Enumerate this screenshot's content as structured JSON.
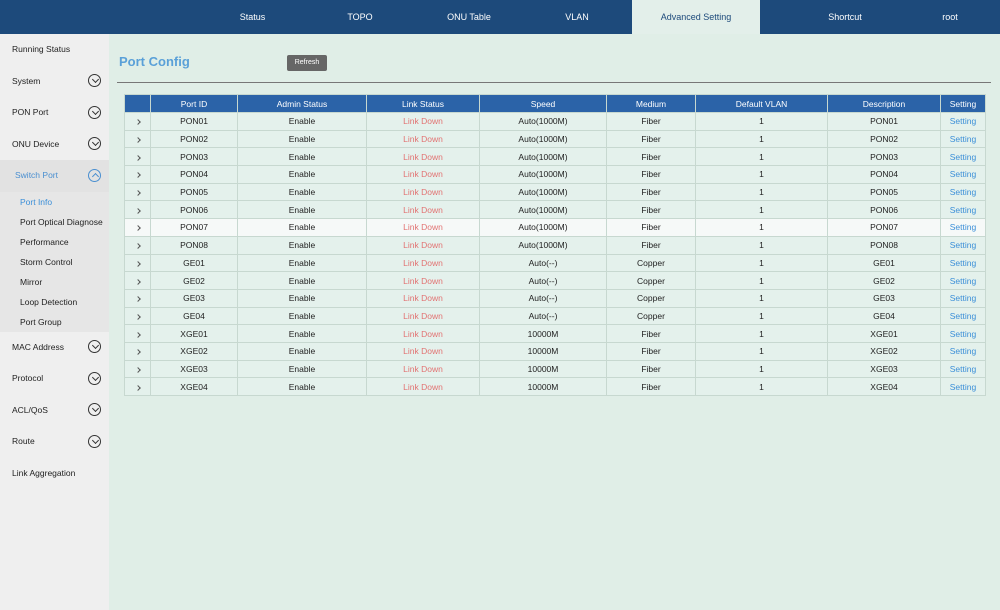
{
  "nav": {
    "items": [
      "Status",
      "TOPO",
      "ONU Table",
      "VLAN",
      "Advanced Setting",
      "Shortcut",
      "root"
    ],
    "active": 4
  },
  "menu": [
    {
      "label": "Running Status",
      "collapsible": false
    },
    {
      "label": "System",
      "collapsible": true
    },
    {
      "label": "PON Port",
      "collapsible": true
    },
    {
      "label": "ONU Device",
      "collapsible": true
    },
    {
      "label": "Switch Port",
      "collapsible": true,
      "expanded": true,
      "selected_child": 0,
      "children": [
        "Port Info",
        "Port Optical Diagnose",
        "Performance",
        "Storm Control",
        "Mirror",
        "Loop Detection",
        "Port Group"
      ]
    },
    {
      "label": "MAC Address",
      "collapsible": true
    },
    {
      "label": "Protocol",
      "collapsible": true
    },
    {
      "label": "ACL/QoS",
      "collapsible": true
    },
    {
      "label": "Route",
      "collapsible": true
    },
    {
      "label": "Link Aggregation",
      "collapsible": false
    }
  ],
  "page": {
    "title": "Port Config",
    "refresh_button": "Refresh"
  },
  "table": {
    "columns": [
      "Port ID",
      "Admin Status",
      "Link Status",
      "Speed",
      "Medium",
      "Default VLAN",
      "Description",
      "Setting"
    ],
    "highlighted_row": 6,
    "rows": [
      [
        "PON01",
        "Enable",
        "Link Down",
        "Auto(1000M)",
        "Fiber",
        1,
        "PON01",
        "Setting"
      ],
      [
        "PON02",
        "Enable",
        "Link Down",
        "Auto(1000M)",
        "Fiber",
        1,
        "PON02",
        "Setting"
      ],
      [
        "PON03",
        "Enable",
        "Link Down",
        "Auto(1000M)",
        "Fiber",
        1,
        "PON03",
        "Setting"
      ],
      [
        "PON04",
        "Enable",
        "Link Down",
        "Auto(1000M)",
        "Fiber",
        1,
        "PON04",
        "Setting"
      ],
      [
        "PON05",
        "Enable",
        "Link Down",
        "Auto(1000M)",
        "Fiber",
        1,
        "PON05",
        "Setting"
      ],
      [
        "PON06",
        "Enable",
        "Link Down",
        "Auto(1000M)",
        "Fiber",
        1,
        "PON06",
        "Setting"
      ],
      [
        "PON07",
        "Enable",
        "Link Down",
        "Auto(1000M)",
        "Fiber",
        1,
        "PON07",
        "Setting"
      ],
      [
        "PON08",
        "Enable",
        "Link Down",
        "Auto(1000M)",
        "Fiber",
        1,
        "PON08",
        "Setting"
      ],
      [
        "GE01",
        "Enable",
        "Link Down",
        "Auto(--)",
        "Copper",
        1,
        "GE01",
        "Setting"
      ],
      [
        "GE02",
        "Enable",
        "Link Down",
        "Auto(--)",
        "Copper",
        1,
        "GE02",
        "Setting"
      ],
      [
        "GE03",
        "Enable",
        "Link Down",
        "Auto(--)",
        "Copper",
        1,
        "GE03",
        "Setting"
      ],
      [
        "GE04",
        "Enable",
        "Link Down",
        "Auto(--)",
        "Copper",
        1,
        "GE04",
        "Setting"
      ],
      [
        "XGE01",
        "Enable",
        "Link Down",
        "10000M",
        "Fiber",
        1,
        "XGE01",
        "Setting"
      ],
      [
        "XGE02",
        "Enable",
        "Link Down",
        "10000M",
        "Fiber",
        1,
        "XGE02",
        "Setting"
      ],
      [
        "XGE03",
        "Enable",
        "Link Down",
        "10000M",
        "Fiber",
        1,
        "XGE03",
        "Setting"
      ],
      [
        "XGE04",
        "Enable",
        "Link Down",
        "10000M",
        "Fiber",
        1,
        "XGE04",
        "Setting"
      ]
    ]
  }
}
